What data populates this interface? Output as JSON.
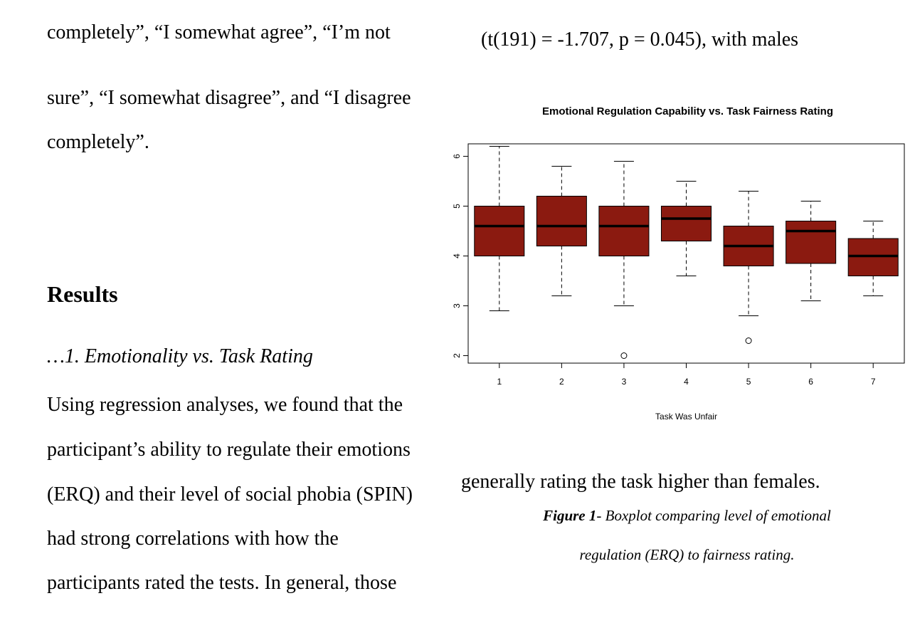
{
  "left_column": {
    "para1_line1": "completely”, “I somewhat agree”, “I’m not",
    "para1_line2": "sure”, “I somewhat disagree”, and “I disagree",
    "para1_line3": "completely”.",
    "results_heading": "Results",
    "subheading": "…1. Emotionality vs. Task Rating",
    "para2_lines": [
      "Using regression analyses, we found that the",
      "participant’s ability to regulate their emotions",
      "(ERQ) and their level of social phobia (SPIN)",
      "had strong correlations with how the",
      "participants rated the tests. In general, those"
    ]
  },
  "right_column": {
    "top_line": "(t(191) = -1.707, p = 0.045), with males",
    "bottom_line": "generally rating the task higher than females.",
    "caption_label": "Figure 1",
    "caption_line1_rest": "- Boxplot comparing level of emotional",
    "caption_line2": "regulation (ERQ) to fairness rating."
  },
  "chart_data": {
    "type": "boxplot",
    "title": "Emotional Regulation Capability vs. Task Fairness Rating",
    "xlabel": "Task Was Unfair",
    "ylabel": "",
    "categories": [
      "1",
      "2",
      "3",
      "4",
      "5",
      "6",
      "7"
    ],
    "yticks": [
      "2",
      "3",
      "4",
      "5",
      "6"
    ],
    "ylim": [
      1.85,
      6.25
    ],
    "box_color": "#8b1a10",
    "boxes": [
      {
        "category": "1",
        "whisker_low": 2.9,
        "q1": 4.0,
        "median": 4.6,
        "q3": 5.0,
        "whisker_high": 6.2,
        "outliers": []
      },
      {
        "category": "2",
        "whisker_low": 3.2,
        "q1": 4.2,
        "median": 4.6,
        "q3": 5.2,
        "whisker_high": 5.8,
        "outliers": []
      },
      {
        "category": "3",
        "whisker_low": 3.0,
        "q1": 4.0,
        "median": 4.6,
        "q3": 5.0,
        "whisker_high": 5.9,
        "outliers": [
          2.0
        ]
      },
      {
        "category": "4",
        "whisker_low": 3.6,
        "q1": 4.3,
        "median": 4.75,
        "q3": 5.0,
        "whisker_high": 5.5,
        "outliers": []
      },
      {
        "category": "5",
        "whisker_low": 2.8,
        "q1": 3.8,
        "median": 4.2,
        "q3": 4.6,
        "whisker_high": 5.3,
        "outliers": [
          2.3
        ]
      },
      {
        "category": "6",
        "whisker_low": 3.1,
        "q1": 3.85,
        "median": 4.5,
        "q3": 4.7,
        "whisker_high": 5.1,
        "outliers": []
      },
      {
        "category": "7",
        "whisker_low": 3.2,
        "q1": 3.6,
        "median": 4.0,
        "q3": 4.35,
        "whisker_high": 4.7,
        "outliers": []
      }
    ]
  }
}
